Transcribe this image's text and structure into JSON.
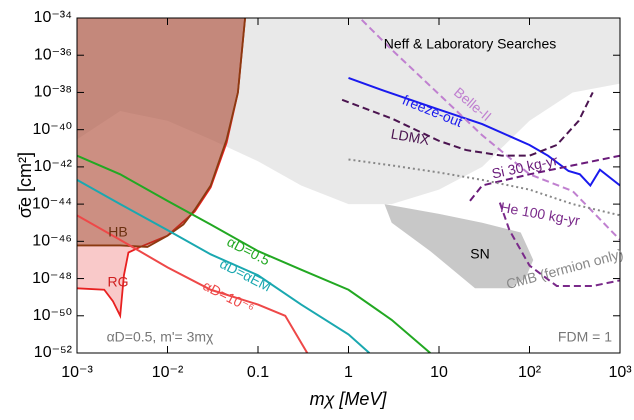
{
  "chart_data": {
    "type": "line",
    "xlabel": "mχ [MeV]",
    "ylabel": "σ̄e [cm²]",
    "log_x": true,
    "log_y": true,
    "xlim": [
      0.001,
      1000
    ],
    "ylim": [
      1e-52,
      1e-34
    ],
    "xticks": [
      {
        "value": 0.001,
        "label": "10⁻³"
      },
      {
        "value": 0.01,
        "label": "10⁻²"
      },
      {
        "value": 0.1,
        "label": "0.1"
      },
      {
        "value": 1,
        "label": "1"
      },
      {
        "value": 10,
        "label": "10"
      },
      {
        "value": 100,
        "label": "10²"
      },
      {
        "value": 1000,
        "label": "10³"
      }
    ],
    "yticks": [
      {
        "value": 1e-52,
        "label": "10⁻⁵²"
      },
      {
        "value": 1e-50,
        "label": "10⁻⁵⁰"
      },
      {
        "value": 1e-48,
        "label": "10⁻⁴⁸"
      },
      {
        "value": 1e-46,
        "label": "10⁻⁴⁶"
      },
      {
        "value": 1e-44,
        "label": "10⁻⁴⁴"
      },
      {
        "value": 1e-42,
        "label": "10⁻⁴²"
      },
      {
        "value": 1e-40,
        "label": "10⁻⁴⁰"
      },
      {
        "value": 1e-38,
        "label": "10⁻³⁸"
      },
      {
        "value": 1e-36,
        "label": "10⁻³⁶"
      },
      {
        "value": 1e-34,
        "label": "10⁻³⁴"
      }
    ],
    "regions": [
      {
        "name": "Neff & Laboratory Searches",
        "color": "#c8c8c8",
        "fill_to": "top",
        "x": [
          0.001,
          0.003,
          0.01,
          0.03,
          0.1,
          0.3,
          1,
          3,
          10,
          30,
          100,
          300,
          1000
        ],
        "y": [
          3e-41,
          1e-39,
          3e-40,
          3e-41,
          2e-42,
          1e-43,
          1e-44,
          1e-44,
          6e-44,
          1e-42,
          3e-40,
          1e-38,
          3e-38
        ]
      },
      {
        "name": "SN",
        "color": "#c8c8c8",
        "fill_to": "closed",
        "x": [
          2.5,
          10,
          30,
          80,
          110,
          90,
          60,
          25,
          8,
          3
        ],
        "y": [
          1e-44,
          3e-45,
          1e-45,
          3e-46,
          1e-47,
          1e-48,
          3e-49,
          3e-49,
          3e-47,
          1e-45
        ]
      },
      {
        "name": "RG",
        "color": "#f07878",
        "stroke": "#e82020",
        "fill_to": "top",
        "x": [
          0.001,
          0.002,
          0.0025,
          0.003,
          0.0033,
          0.0037,
          0.005,
          0.01,
          0.02,
          0.03,
          0.045,
          0.06,
          0.072
        ],
        "y": [
          3e-49,
          2.5e-49,
          6e-50,
          1e-50,
          1.5e-48,
          2.5e-47,
          5e-47,
          2e-46,
          4e-45,
          8e-44,
          2e-41,
          1e-38,
          1e-34
        ]
      },
      {
        "name": "HB",
        "color": "#8a3a18",
        "stroke": "#8b3a10",
        "fill_to": "top",
        "x": [
          0.001,
          0.003,
          0.006,
          0.01,
          0.015,
          0.02,
          0.03,
          0.045,
          0.06,
          0.072
        ],
        "y": [
          6e-47,
          6e-47,
          5e-47,
          2e-46,
          8e-46,
          5e-45,
          1e-43,
          3e-41,
          1e-38,
          1e-34
        ]
      }
    ],
    "series": [
      {
        "name": "αD=0.5",
        "color": "#22a822",
        "dash": "none",
        "x": [
          0.001,
          0.003,
          0.01,
          0.03,
          0.1,
          0.3,
          1,
          3,
          8
        ],
        "values": [
          4e-42,
          4e-43,
          1.5e-44,
          8e-46,
          3e-47,
          3e-48,
          2.5e-49,
          6e-51,
          1e-52
        ]
      },
      {
        "name": "αD=αEM",
        "color": "#1aa8b0",
        "dash": "none",
        "x": [
          0.001,
          0.003,
          0.01,
          0.03,
          0.1,
          0.3,
          1,
          1.7
        ],
        "values": [
          2e-43,
          1e-44,
          4e-46,
          2e-47,
          1.5e-48,
          4e-50,
          1e-51,
          1e-52
        ]
      },
      {
        "name": "αD=10⁻⁶",
        "color": "#ee4848",
        "dash": "none",
        "x": [
          0.001,
          0.003,
          0.01,
          0.03,
          0.1,
          0.2,
          0.35
        ],
        "values": [
          2.5e-45,
          1.2e-46,
          4e-48,
          2.5e-49,
          4e-50,
          1e-50,
          1e-52
        ]
      },
      {
        "name": "freeze-out",
        "color": "#1a1aee",
        "dash": "none",
        "x": [
          1,
          2.5,
          10,
          30,
          100,
          160,
          270,
          360,
          470,
          600,
          1000
        ],
        "values": [
          6e-38,
          1.2e-38,
          1.2e-39,
          2e-40,
          1.5e-41,
          4e-42,
          6e-43,
          4e-43,
          1e-43,
          7e-43,
          1e-43
        ]
      },
      {
        "name": "Belle-II",
        "color": "#c080d0",
        "dash": "7,4",
        "x": [
          1.4,
          3,
          10,
          30,
          100,
          300,
          1000
        ],
        "values": [
          8e-35,
          2e-36,
          8e-39,
          5e-41,
          4e-43,
          5e-44,
          1.2e-46
        ]
      },
      {
        "name": "LDMX",
        "color": "#4b1450",
        "dash": "7,4",
        "x": [
          0.85,
          3,
          10,
          20,
          50,
          100,
          200,
          350,
          500
        ],
        "values": [
          4e-39,
          4e-40,
          2.5e-41,
          8e-42,
          4e-42,
          4e-42,
          1.5e-41,
          3e-40,
          1e-38
        ]
      },
      {
        "name": "Si 30 kg-yr",
        "color": "#6a1a7a",
        "dash": "7,4",
        "x": [
          22,
          30,
          100,
          300,
          1000
        ],
        "values": [
          1.5e-44,
          1e-43,
          4e-43,
          1.2e-42,
          4e-42
        ]
      },
      {
        "name": "He 100 kg-yr",
        "color": "#7a2a8a",
        "dash": "7,4",
        "x": [
          47,
          60,
          100,
          200,
          500,
          1000
        ],
        "values": [
          1.2e-44,
          4e-46,
          5e-48,
          4e-49,
          4e-49,
          8e-49
        ]
      },
      {
        "name": "CMB (fermion only)",
        "color": "#888888",
        "dash": "2,3",
        "x": [
          1,
          3,
          10,
          30,
          100,
          300,
          1000
        ],
        "values": [
          2.5e-42,
          1.2e-42,
          5e-43,
          2e-43,
          6e-44,
          1e-44,
          2.5e-45
        ]
      }
    ],
    "annotations": [
      "αD=0.5, m'= 3mχ",
      "FDM = 1"
    ]
  }
}
